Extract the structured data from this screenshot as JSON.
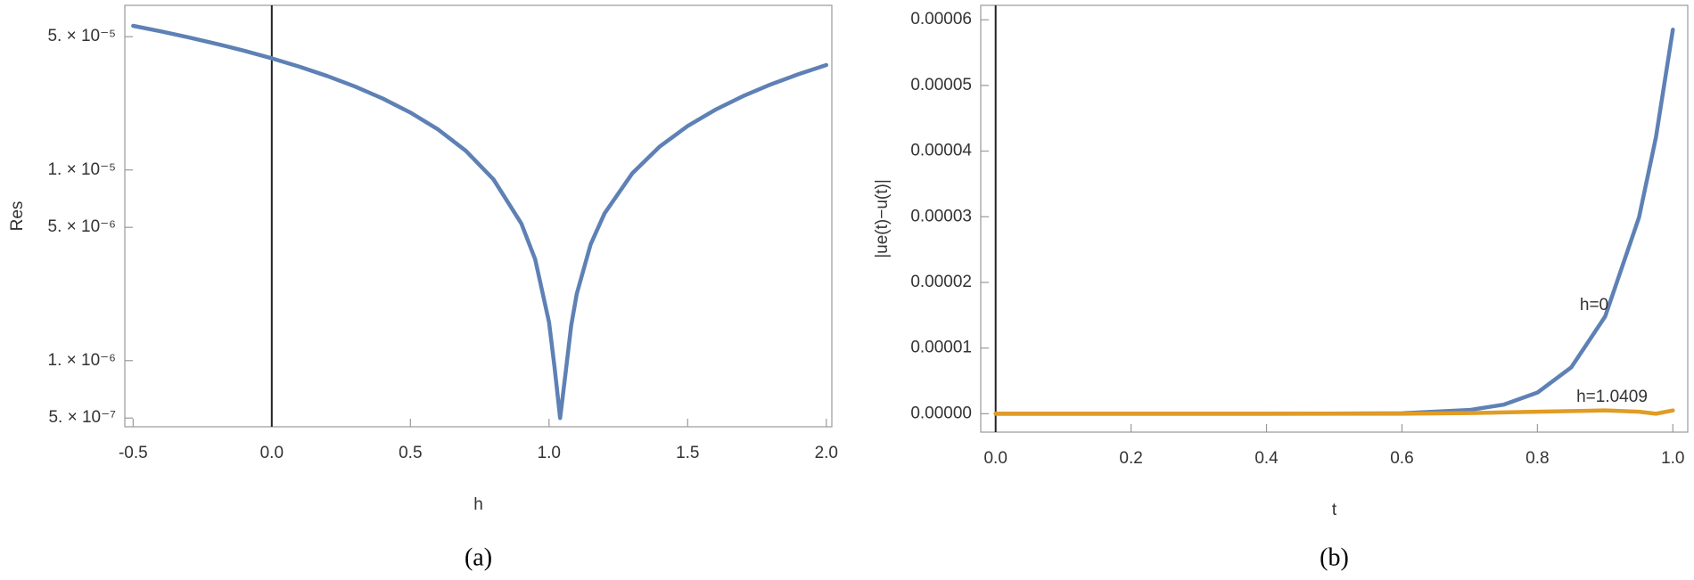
{
  "chart_data": [
    {
      "type": "line",
      "ylog": true,
      "caption": "(a)",
      "xlabel": "h",
      "ylabel": "Res",
      "x": [
        -0.5,
        -0.4,
        -0.3,
        -0.2,
        -0.1,
        0.0,
        0.1,
        0.2,
        0.3,
        0.4,
        0.5,
        0.6,
        0.7,
        0.8,
        0.9,
        0.95,
        1.0,
        1.02,
        1.04,
        1.06,
        1.08,
        1.1,
        1.15,
        1.2,
        1.3,
        1.4,
        1.5,
        1.6,
        1.7,
        1.8,
        1.9,
        2.0
      ],
      "series": [
        {
          "color": "#5e81b5",
          "values": [
            5.7e-05,
            5.33e-05,
            4.96e-05,
            4.59e-05,
            4.22e-05,
            3.85e-05,
            3.48e-05,
            3.11e-05,
            2.74e-05,
            2.37e-05,
            2e-05,
            1.63e-05,
            1.26e-05,
            8.91e-06,
            5.24e-06,
            3.4e-06,
            1.59e-06,
            9.2e-07,
            5e-07,
            8.7e-07,
            1.53e-06,
            2.24e-06,
            4.07e-06,
            5.91e-06,
            9.59e-06,
            1.33e-05,
            1.7e-05,
            2.07e-05,
            2.44e-05,
            2.81e-05,
            3.18e-05,
            3.55e-05
          ]
        }
      ],
      "xlim": [
        -0.53,
        2.02
      ],
      "xticks": [
        -0.5,
        {
          "value": 0,
          "label": "0.0"
        },
        0.5,
        {
          "value": 1,
          "label": "1.0"
        },
        1.5,
        {
          "value": 2,
          "label": "2.0"
        }
      ],
      "ylim": [
        4.5e-07,
        7.3e-05
      ],
      "yticks": [
        {
          "value": 5e-05,
          "label": "5. × 10⁻⁵"
        },
        {
          "value": 1e-05,
          "label": "1. × 10⁻⁵"
        },
        {
          "value": 5e-06,
          "label": "5. × 10⁻⁶"
        },
        {
          "value": 1e-06,
          "label": "1. × 10⁻⁶"
        },
        {
          "value": 5e-07,
          "label": "5. × 10⁻⁷"
        }
      ]
    },
    {
      "type": "line",
      "ylog": false,
      "caption": "(b)",
      "xlabel": "t",
      "ylabel": "|ue(t)−u(t)|",
      "x": [
        0,
        0.1,
        0.2,
        0.3,
        0.4,
        0.5,
        0.6,
        0.7,
        0.75,
        0.8,
        0.85,
        0.9,
        0.95,
        0.975,
        1.0
      ],
      "series": [
        {
          "name": "h=0",
          "color": "#5e81b5",
          "values": [
            0,
            0,
            0,
            0,
            0,
            7.1e-09,
            6.3e-08,
            5.7e-07,
            1.38e-06,
            3.22e-06,
            7.07e-06,
            1.48e-05,
            2.99e-05,
            4.21e-05,
            5.85e-05
          ]
        },
        {
          "name": "h=1.0409",
          "color": "#e19c24",
          "values": [
            0,
            0,
            0,
            0,
            0,
            0,
            0,
            1e-07,
            2e-07,
            3e-07,
            4e-07,
            5e-07,
            3e-07,
            0,
            5e-07
          ]
        }
      ],
      "xlim": [
        -0.022,
        1.022
      ],
      "xticks": [
        {
          "value": 0,
          "label": "0.0"
        },
        0.2,
        0.4,
        0.6,
        0.8,
        {
          "value": 1,
          "label": "1.0"
        }
      ],
      "ylim": [
        -2.8e-06,
        6.22e-05
      ],
      "yticks": [
        {
          "value": 0,
          "label": "0.00000"
        },
        {
          "value": 1e-05,
          "label": "0.00001"
        },
        {
          "value": 2e-05,
          "label": "0.00002"
        },
        {
          "value": 3e-05,
          "label": "0.00003"
        },
        {
          "value": 4e-05,
          "label": "0.00004"
        },
        {
          "value": 5e-05,
          "label": "0.00005"
        },
        {
          "value": 6e-05,
          "label": "0.00006"
        }
      ]
    }
  ]
}
